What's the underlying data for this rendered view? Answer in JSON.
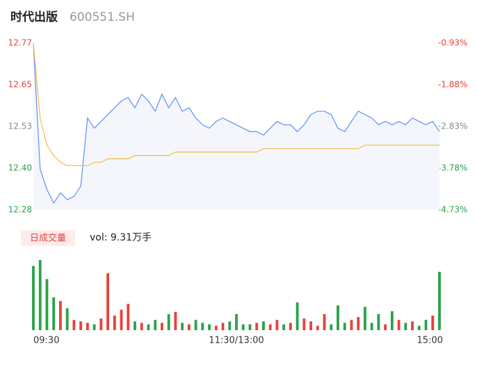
{
  "header": {
    "name": "时代出版",
    "code": "600551.SH"
  },
  "chart_data": {
    "type": "intraday",
    "x": [
      0,
      4,
      8,
      12,
      16,
      20,
      24,
      28,
      32,
      36,
      40,
      44,
      48,
      52,
      56,
      60,
      64,
      68,
      72,
      76,
      80,
      84,
      88,
      92,
      96,
      100,
      104,
      108,
      112,
      116,
      120,
      124,
      128,
      132,
      136,
      140,
      144,
      148,
      152,
      156,
      160,
      164,
      168,
      172,
      176,
      180,
      184,
      188,
      192,
      196,
      200,
      204,
      208,
      212,
      216,
      220,
      224,
      228,
      232,
      236,
      240
    ],
    "xlim": [
      0,
      240
    ],
    "xticks": [
      {
        "value": 0,
        "label": "09:30"
      },
      {
        "value": 120,
        "label": "11:30/13:00"
      },
      {
        "value": 240,
        "label": "15:00"
      }
    ],
    "ylim": [
      12.28,
      12.77
    ],
    "yticks": [
      {
        "value": 12.28,
        "label": "12.28"
      },
      {
        "value": 12.4025,
        "label": "12.40"
      },
      {
        "value": 12.525,
        "label": "12.53"
      },
      {
        "value": 12.6475,
        "label": "12.65"
      },
      {
        "value": 12.77,
        "label": "12.77"
      }
    ],
    "y2lim": [
      -4.73,
      -0.93
    ],
    "y2ticks": [
      {
        "value": -4.73,
        "label": "-4.73%"
      },
      {
        "value": -3.78,
        "label": "-3.78%"
      },
      {
        "value": -2.83,
        "label": "-2.83%"
      },
      {
        "value": -1.88,
        "label": "-1.88%"
      },
      {
        "value": -0.93,
        "label": "-0.93%"
      }
    ],
    "tick_colors": [
      "#2aa34a",
      "#2aa34a",
      "#888888",
      "#e8413d",
      "#e8413d"
    ],
    "series": [
      {
        "name": "price",
        "color": "#5b8ff9",
        "values": [
          12.77,
          12.4,
          12.34,
          12.3,
          12.33,
          12.31,
          12.32,
          12.35,
          12.55,
          12.52,
          12.54,
          12.56,
          12.58,
          12.6,
          12.61,
          12.58,
          12.62,
          12.6,
          12.57,
          12.62,
          12.58,
          12.61,
          12.57,
          12.58,
          12.55,
          12.53,
          12.52,
          12.54,
          12.55,
          12.54,
          12.53,
          12.52,
          12.51,
          12.51,
          12.5,
          12.52,
          12.54,
          12.53,
          12.53,
          12.51,
          12.53,
          12.56,
          12.57,
          12.57,
          12.56,
          12.52,
          12.51,
          12.54,
          12.57,
          12.56,
          12.55,
          12.53,
          12.54,
          12.53,
          12.54,
          12.53,
          12.55,
          12.54,
          12.53,
          12.54,
          12.51
        ]
      },
      {
        "name": "average",
        "color": "#f5b942",
        "values": [
          12.77,
          12.55,
          12.47,
          12.44,
          12.42,
          12.41,
          12.41,
          12.41,
          12.41,
          12.42,
          12.42,
          12.43,
          12.43,
          12.43,
          12.43,
          12.44,
          12.44,
          12.44,
          12.44,
          12.44,
          12.44,
          12.45,
          12.45,
          12.45,
          12.45,
          12.45,
          12.45,
          12.45,
          12.45,
          12.45,
          12.45,
          12.45,
          12.45,
          12.45,
          12.46,
          12.46,
          12.46,
          12.46,
          12.46,
          12.46,
          12.46,
          12.46,
          12.46,
          12.46,
          12.46,
          12.46,
          12.46,
          12.46,
          12.46,
          12.47,
          12.47,
          12.47,
          12.47,
          12.47,
          12.47,
          12.47,
          12.47,
          12.47,
          12.47,
          12.47,
          12.47
        ]
      }
    ],
    "volume": {
      "legend": "日成交量",
      "label": "vol: 9.31万手",
      "ylim": [
        0,
        100
      ],
      "up_color": "#e8413d",
      "down_color": "#2aa34a",
      "values": [
        88,
        96,
        70,
        45,
        40,
        30,
        14,
        12,
        10,
        8,
        16,
        78,
        20,
        28,
        36,
        12,
        10,
        8,
        14,
        10,
        22,
        25,
        10,
        8,
        14,
        10,
        8,
        6,
        10,
        12,
        22,
        8,
        8,
        10,
        12,
        8,
        14,
        8,
        10,
        38,
        16,
        12,
        6,
        22,
        8,
        34,
        10,
        14,
        18,
        32,
        10,
        22,
        8,
        26,
        14,
        10,
        12,
        6,
        14,
        20,
        80
      ]
    }
  }
}
